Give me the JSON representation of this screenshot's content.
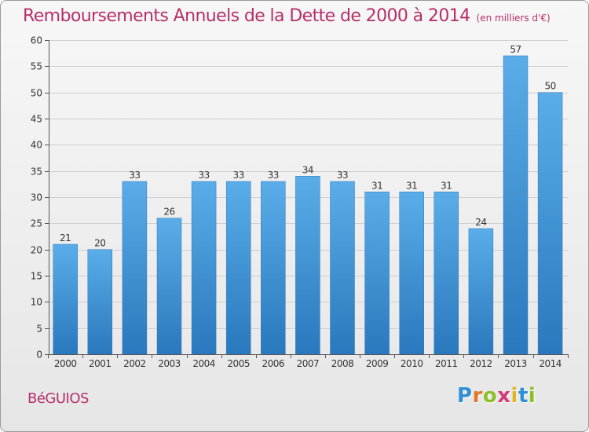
{
  "chart_data": {
    "type": "bar",
    "title": "Remboursements Annuels de la Dette de 2000 à 2014",
    "subtitle": "(en milliers d'€)",
    "categories": [
      "2000",
      "2001",
      "2002",
      "2003",
      "2004",
      "2005",
      "2006",
      "2007",
      "2008",
      "2009",
      "2010",
      "2011",
      "2012",
      "2013",
      "2014"
    ],
    "values": [
      21,
      20,
      33,
      26,
      33,
      33,
      33,
      34,
      33,
      31,
      31,
      31,
      24,
      57,
      50
    ],
    "yticks": [
      0,
      5,
      10,
      15,
      20,
      25,
      30,
      35,
      40,
      45,
      50,
      55,
      60
    ],
    "ylim": [
      0,
      60
    ],
    "xlabel": "",
    "ylabel": "",
    "grid": true,
    "bar_color": "#3c8fd6",
    "title_color": "#b5306a"
  },
  "footer": {
    "commune": "BéGUIOS"
  },
  "logo": {
    "letters": [
      "P",
      "r",
      "o",
      "x",
      "i",
      "t",
      "i"
    ],
    "colors": [
      "#2f8fd6",
      "#e0762a",
      "#8cbf2a",
      "#d23a78",
      "#e0b420",
      "#2f8fd6",
      "#8cbf2a"
    ]
  }
}
